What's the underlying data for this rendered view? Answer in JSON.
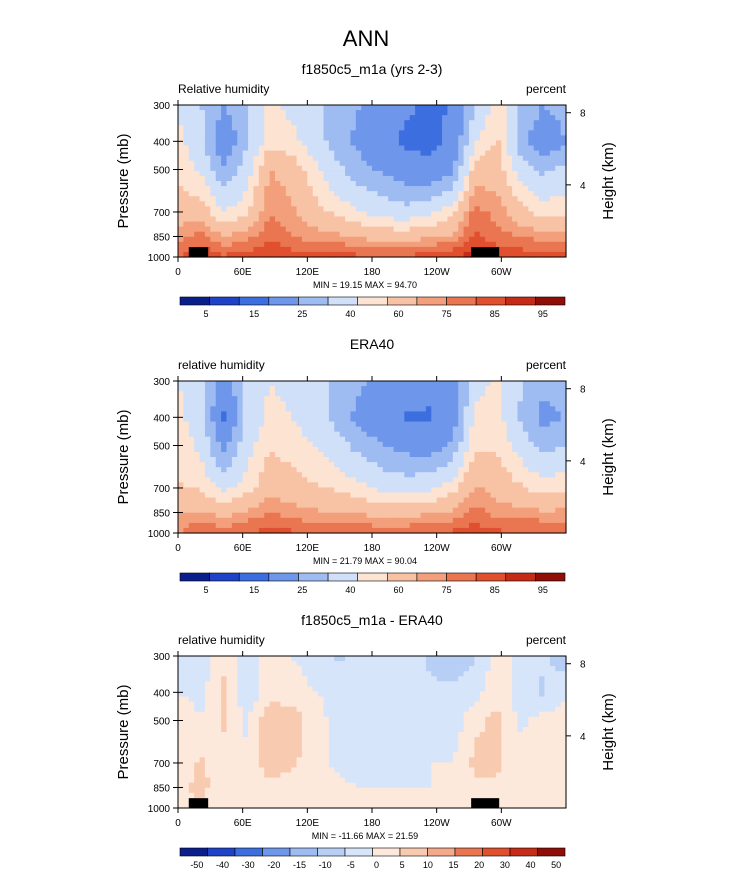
{
  "main_title": "ANN",
  "colors": {
    "fill_scale": [
      "#0a1e8c",
      "#1f43c8",
      "#3d6ee0",
      "#6e96eb",
      "#9fbcf2",
      "#cfe0f8",
      "#fde3d2",
      "#f8c3a5",
      "#f39f7b",
      "#ea7651",
      "#e0502e",
      "#c52b16",
      "#8f0f08"
    ],
    "diff_scale": [
      "#0a1e8c",
      "#1f43c8",
      "#3d6ee0",
      "#6e96eb",
      "#9fbcf2",
      "#b8cff5",
      "#d6e5fa",
      "#fde8dc",
      "#f8cbb0",
      "#f3a98a",
      "#ea7651",
      "#e0502e",
      "#c52b16",
      "#8f0f08"
    ],
    "topography": "#000000"
  },
  "chart_data": [
    {
      "type": "heatmap",
      "title": "f1850c5_m1a (yrs 2-3)",
      "left_label": "Relative humidity",
      "right_label": "percent",
      "ylabel": "Pressure (mb)",
      "ylabel_right": "Height (km)",
      "xticks": [
        {
          "lon": 0,
          "label": "0"
        },
        {
          "lon": 60,
          "label": "60E"
        },
        {
          "lon": 120,
          "label": "120E"
        },
        {
          "lon": 180,
          "label": "180"
        },
        {
          "lon": 240,
          "label": "120W"
        },
        {
          "lon": 300,
          "label": "60W"
        }
      ],
      "x_range": [
        0,
        360
      ],
      "yticks": [
        300,
        400,
        500,
        700,
        850,
        1000
      ],
      "y_range": [
        300,
        1000
      ],
      "height_ticks": [
        {
          "km": 4,
          "label": "4"
        },
        {
          "km": 8,
          "label": "8"
        }
      ],
      "stats": "MIN = 19.15  MAX = 94.70",
      "colorbar_labels": [
        "5",
        "15",
        "25",
        "40",
        "60",
        "75",
        "85",
        "95"
      ],
      "field": [
        {
          "p": 300,
          "rh": [
            60,
            50,
            40,
            48,
            62,
            58,
            52,
            46,
            40,
            34,
            28,
            22,
            26,
            50,
            65,
            50,
            40,
            45
          ]
        },
        {
          "p": 400,
          "rh": [
            62,
            55,
            30,
            48,
            65,
            62,
            55,
            45,
            36,
            28,
            22,
            20,
            28,
            60,
            68,
            45,
            30,
            40
          ]
        },
        {
          "p": 500,
          "rh": [
            66,
            58,
            42,
            55,
            75,
            72,
            62,
            52,
            44,
            38,
            32,
            30,
            38,
            70,
            72,
            55,
            48,
            52
          ]
        },
        {
          "p": 700,
          "rh": [
            70,
            72,
            60,
            65,
            80,
            76,
            70,
            65,
            60,
            56,
            54,
            58,
            64,
            82,
            78,
            70,
            64,
            66
          ]
        },
        {
          "p": 850,
          "rh": [
            78,
            82,
            75,
            78,
            84,
            80,
            78,
            76,
            74,
            72,
            72,
            74,
            76,
            86,
            82,
            80,
            78,
            78
          ]
        },
        {
          "p": 1000,
          "rh": [
            84,
            90,
            86,
            88,
            90,
            88,
            86,
            88,
            86,
            86,
            86,
            88,
            90,
            92,
            88,
            88,
            88,
            88
          ]
        }
      ],
      "topography": [
        {
          "lon": [
            10,
            28
          ],
          "p": 925
        },
        {
          "lon": [
            272,
            298
          ],
          "p": 925
        }
      ]
    },
    {
      "type": "heatmap",
      "title": "ERA40",
      "left_label": "relative humidity",
      "right_label": "percent",
      "ylabel": "Pressure (mb)",
      "ylabel_right": "Height (km)",
      "xticks": [
        {
          "lon": 0,
          "label": "0"
        },
        {
          "lon": 60,
          "label": "60E"
        },
        {
          "lon": 120,
          "label": "120E"
        },
        {
          "lon": 180,
          "label": "180"
        },
        {
          "lon": 240,
          "label": "120W"
        },
        {
          "lon": 300,
          "label": "60W"
        }
      ],
      "x_range": [
        0,
        360
      ],
      "yticks": [
        300,
        400,
        500,
        700,
        850,
        1000
      ],
      "y_range": [
        300,
        1000
      ],
      "height_ticks": [
        {
          "km": 4,
          "label": "4"
        },
        {
          "km": 8,
          "label": "8"
        }
      ],
      "stats": "MIN = 21.79  MAX = 90.04",
      "colorbar_labels": [
        "5",
        "15",
        "25",
        "40",
        "60",
        "75",
        "85",
        "95"
      ],
      "field": [
        {
          "p": 300,
          "rh": [
            60,
            55,
            32,
            52,
            60,
            58,
            54,
            48,
            42,
            36,
            30,
            28,
            34,
            56,
            62,
            52,
            44,
            48
          ]
        },
        {
          "p": 400,
          "rh": [
            62,
            56,
            24,
            52,
            62,
            60,
            55,
            46,
            36,
            30,
            24,
            24,
            32,
            62,
            64,
            48,
            36,
            40
          ]
        },
        {
          "p": 500,
          "rh": [
            64,
            58,
            36,
            56,
            66,
            64,
            60,
            54,
            46,
            40,
            36,
            34,
            42,
            66,
            66,
            56,
            46,
            50
          ]
        },
        {
          "p": 700,
          "rh": [
            68,
            66,
            58,
            64,
            72,
            70,
            68,
            66,
            62,
            58,
            56,
            58,
            64,
            76,
            72,
            68,
            64,
            66
          ]
        },
        {
          "p": 850,
          "rh": [
            74,
            76,
            72,
            76,
            80,
            78,
            76,
            75,
            74,
            72,
            72,
            74,
            76,
            82,
            78,
            77,
            76,
            76
          ]
        },
        {
          "p": 1000,
          "rh": [
            80,
            86,
            82,
            86,
            86,
            86,
            84,
            86,
            84,
            84,
            84,
            86,
            86,
            88,
            86,
            86,
            86,
            86
          ]
        }
      ],
      "topography": []
    },
    {
      "type": "heatmap",
      "title": "f1850c5_m1a - ERA40",
      "left_label": "relative humidity",
      "right_label": "percent",
      "ylabel": "Pressure (mb)",
      "ylabel_right": "Height (km)",
      "xticks": [
        {
          "lon": 0,
          "label": "0"
        },
        {
          "lon": 60,
          "label": "60E"
        },
        {
          "lon": 120,
          "label": "120E"
        },
        {
          "lon": 180,
          "label": "180"
        },
        {
          "lon": 240,
          "label": "120W"
        },
        {
          "lon": 300,
          "label": "60W"
        }
      ],
      "x_range": [
        0,
        360
      ],
      "yticks": [
        300,
        400,
        500,
        700,
        850,
        1000
      ],
      "y_range": [
        300,
        1000
      ],
      "height_ticks": [
        {
          "km": 4,
          "label": "4"
        },
        {
          "km": 8,
          "label": "8"
        }
      ],
      "stats": "MIN = -11.66  MAX = 21.59",
      "colorbar_labels": [
        "-50",
        "-40",
        "-30",
        "-20",
        "-15",
        "-10",
        "-5",
        "0",
        "5",
        "10",
        "15",
        "20",
        "30",
        "40",
        "50"
      ],
      "field": [
        {
          "p": 300,
          "d": [
            0,
            -5,
            4,
            -4,
            2,
            0,
            -2,
            -6,
            -4,
            -2,
            -2,
            -6,
            -8,
            -6,
            3,
            -2,
            -4,
            -8
          ]
        },
        {
          "p": 400,
          "d": [
            0,
            -1,
            6,
            -4,
            3,
            2,
            0,
            -1,
            0,
            -2,
            -2,
            -4,
            -4,
            -2,
            4,
            -3,
            -6,
            0
          ]
        },
        {
          "p": 500,
          "d": [
            2,
            0,
            6,
            -1,
            9,
            8,
            2,
            -2,
            -2,
            -2,
            -4,
            -4,
            -4,
            4,
            6,
            -1,
            2,
            2
          ]
        },
        {
          "p": 700,
          "d": [
            2,
            6,
            2,
            1,
            8,
            6,
            2,
            -1,
            -2,
            -2,
            -2,
            0,
            0,
            6,
            6,
            2,
            0,
            0
          ]
        },
        {
          "p": 850,
          "d": [
            4,
            6,
            3,
            2,
            4,
            2,
            2,
            1,
            0,
            0,
            0,
            0,
            0,
            4,
            4,
            3,
            2,
            2
          ]
        },
        {
          "p": 1000,
          "d": [
            4,
            4,
            4,
            2,
            4,
            2,
            2,
            2,
            2,
            2,
            2,
            2,
            4,
            4,
            2,
            2,
            2,
            2
          ]
        }
      ],
      "topography": [
        {
          "lon": [
            10,
            28
          ],
          "p": 925
        },
        {
          "lon": [
            272,
            298
          ],
          "p": 925
        }
      ]
    }
  ]
}
